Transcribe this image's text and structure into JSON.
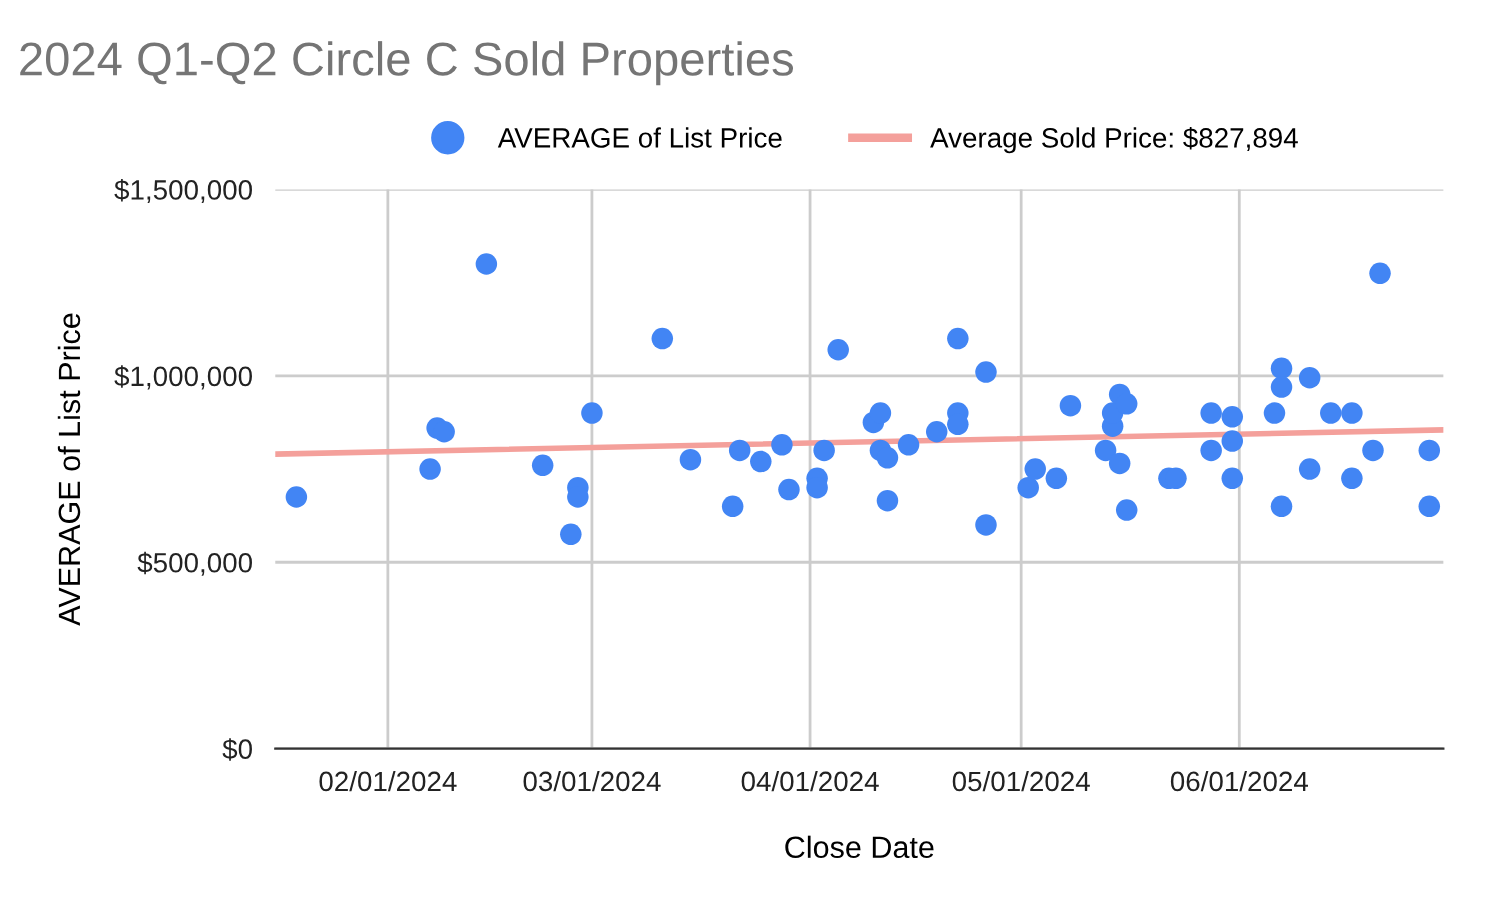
{
  "chart_data": {
    "type": "scatter",
    "title": "2024 Q1-Q2 Circle C Sold Properties",
    "xlabel": "Close Date",
    "ylabel": "AVERAGE of List Price",
    "xlim": [
      "2024-01-16",
      "2024-06-30"
    ],
    "xticks": [
      {
        "value": "2024-02-01",
        "label": "02/01/2024"
      },
      {
        "value": "2024-03-01",
        "label": "03/01/2024"
      },
      {
        "value": "2024-04-01",
        "label": "04/01/2024"
      },
      {
        "value": "2024-05-01",
        "label": "05/01/2024"
      },
      {
        "value": "2024-06-01",
        "label": "06/01/2024"
      }
    ],
    "ylim": [
      0,
      1500000
    ],
    "yticks": [
      {
        "value": 0,
        "label": "$0"
      },
      {
        "value": 500000,
        "label": "$500,000"
      },
      {
        "value": 1000000,
        "label": "$1,000,000"
      },
      {
        "value": 1500000,
        "label": "$1,500,000"
      }
    ],
    "grid": true,
    "legend": "top",
    "marker": "circle",
    "series": [
      {
        "name": "AVERAGE of List Price",
        "color": "#4285f4",
        "x": [
          "2024-01-19",
          "2024-02-07",
          "2024-02-08",
          "2024-02-09",
          "2024-02-15",
          "2024-02-23",
          "2024-02-28",
          "2024-02-28",
          "2024-02-27",
          "2024-03-01",
          "2024-03-11",
          "2024-03-15",
          "2024-03-21",
          "2024-03-22",
          "2024-03-25",
          "2024-03-28",
          "2024-03-29",
          "2024-04-02",
          "2024-04-02",
          "2024-04-03",
          "2024-04-05",
          "2024-04-10",
          "2024-04-11",
          "2024-04-11",
          "2024-04-12",
          "2024-04-12",
          "2024-04-15",
          "2024-04-19",
          "2024-04-22",
          "2024-04-22",
          "2024-04-22",
          "2024-04-26",
          "2024-04-26",
          "2024-05-02",
          "2024-05-03",
          "2024-05-06",
          "2024-05-08",
          "2024-05-13",
          "2024-05-14",
          "2024-05-14",
          "2024-05-15",
          "2024-05-16",
          "2024-05-15",
          "2024-05-16",
          "2024-05-22",
          "2024-05-23",
          "2024-05-28",
          "2024-05-28",
          "2024-05-31",
          "2024-05-31",
          "2024-05-31",
          "2024-06-06",
          "2024-06-07",
          "2024-06-07",
          "2024-06-07",
          "2024-06-11",
          "2024-06-11",
          "2024-06-14",
          "2024-06-17",
          "2024-06-17",
          "2024-06-20",
          "2024-06-21",
          "2024-06-28",
          "2024-06-28"
        ],
        "values": [
          675000,
          750000,
          860000,
          850000,
          1300000,
          760000,
          700000,
          675000,
          575000,
          900000,
          1100000,
          775000,
          650000,
          800000,
          770000,
          815000,
          695000,
          725000,
          700000,
          800000,
          1070000,
          875000,
          900000,
          800000,
          780000,
          665000,
          815000,
          850000,
          1100000,
          900000,
          870000,
          1010000,
          600000,
          700000,
          750000,
          725000,
          920000,
          800000,
          865000,
          900000,
          950000,
          925000,
          765000,
          640000,
          725000,
          725000,
          900000,
          800000,
          890000,
          825000,
          725000,
          900000,
          1020000,
          970000,
          650000,
          995000,
          750000,
          900000,
          900000,
          725000,
          800000,
          1275000,
          800000,
          650000
        ]
      },
      {
        "name": "Average Sold Price: $827,894",
        "type": "line",
        "color": "#f4a09b",
        "marker": "none",
        "line_style": "solid",
        "x": [
          "2024-01-16",
          "2024-06-30"
        ],
        "values": [
          790000,
          855000
        ]
      }
    ]
  }
}
